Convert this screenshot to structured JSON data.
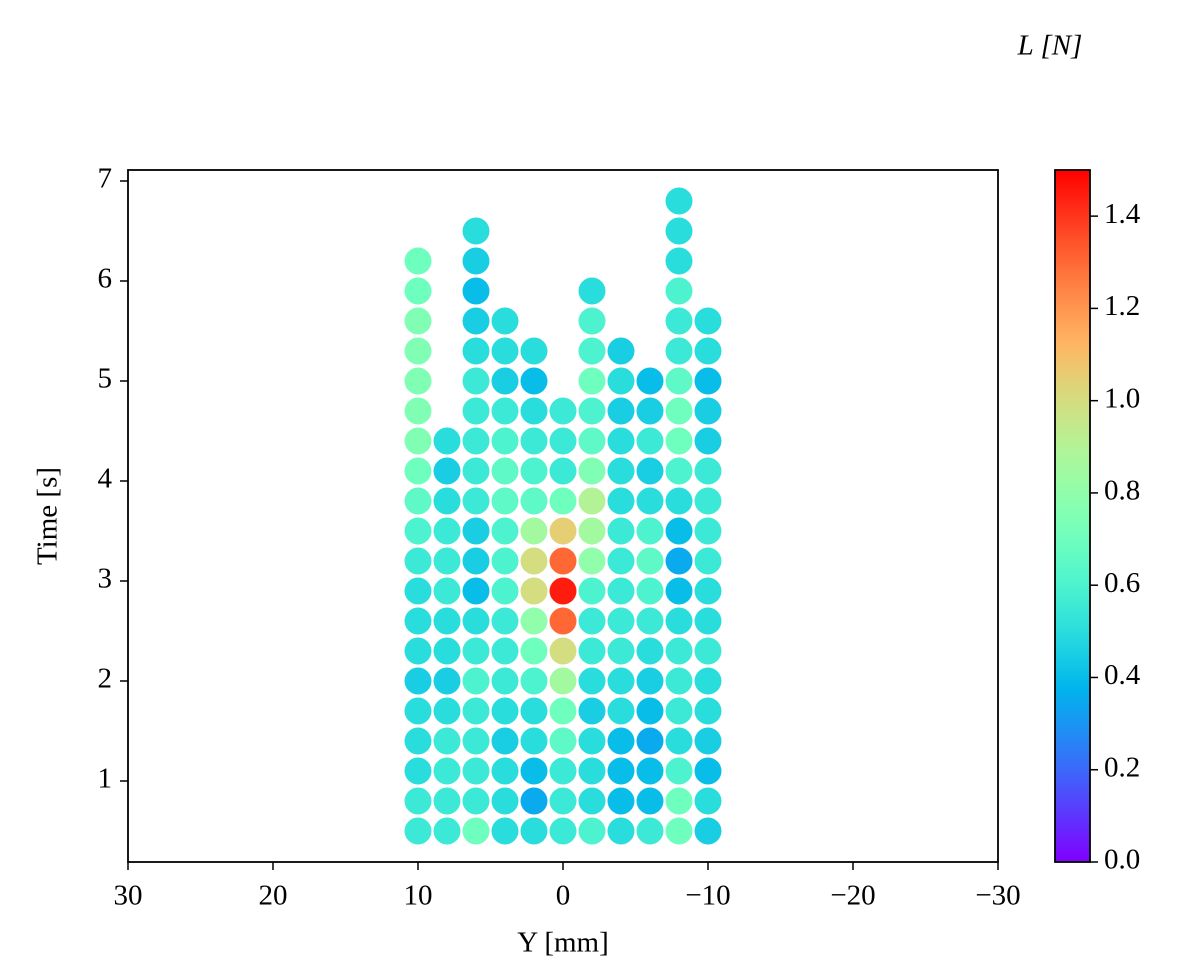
{
  "chart_data": {
    "type": "scatter",
    "colorbar_label": "L [N]",
    "xlabel": "Y [mm]",
    "ylabel": "Time [s]",
    "xlim": [
      30,
      -30
    ],
    "ylim": [
      0.19,
      7.11
    ],
    "xticks": [
      30,
      20,
      10,
      0,
      {
        "value": -10,
        "label": "−10"
      },
      {
        "value": -20,
        "label": "−20"
      },
      {
        "value": -30,
        "label": "−30"
      }
    ],
    "yticks": [
      1,
      2,
      3,
      4,
      5,
      6,
      7
    ],
    "clim": [
      0,
      1.5
    ],
    "cticks": [
      {
        "value": 0,
        "label": "0.0"
      },
      0.2,
      0.4,
      0.6,
      0.8,
      {
        "value": 1,
        "label": "1.0"
      },
      1.2,
      1.4
    ],
    "colormap": "rainbow",
    "x": [
      10,
      10,
      10,
      10,
      10,
      10,
      10,
      10,
      10,
      10,
      10,
      10,
      10,
      10,
      10,
      10,
      10,
      10,
      10,
      10,
      8,
      8,
      8,
      8,
      8,
      8,
      8,
      8,
      8,
      8,
      8,
      8,
      8,
      8,
      6,
      6,
      6,
      6,
      6,
      6,
      6,
      6,
      6,
      6,
      6,
      6,
      6,
      6,
      6,
      6,
      6,
      6,
      6,
      6,
      6,
      4,
      4,
      4,
      4,
      4,
      4,
      4,
      4,
      4,
      4,
      4,
      4,
      4,
      4,
      4,
      4,
      4,
      4,
      2,
      2,
      2,
      2,
      2,
      2,
      2,
      2,
      2,
      2,
      2,
      2,
      2,
      2,
      2,
      2,
      2,
      0,
      0,
      0,
      0,
      0,
      0,
      0,
      0,
      0,
      0,
      0,
      0,
      0,
      0,
      0,
      -2,
      -2,
      -2,
      -2,
      -2,
      -2,
      -2,
      -2,
      -2,
      -2,
      -2,
      -2,
      -2,
      -2,
      -2,
      -2,
      -2,
      -2,
      -2,
      -4,
      -4,
      -4,
      -4,
      -4,
      -4,
      -4,
      -4,
      -4,
      -4,
      -4,
      -4,
      -4,
      -4,
      -4,
      -4,
      -4,
      -6,
      -6,
      -6,
      -6,
      -6,
      -6,
      -6,
      -6,
      -6,
      -6,
      -6,
      -6,
      -6,
      -6,
      -6,
      -6,
      -8,
      -8,
      -8,
      -8,
      -8,
      -8,
      -8,
      -8,
      -8,
      -8,
      -8,
      -8,
      -8,
      -8,
      -8,
      -8,
      -8,
      -8,
      -8,
      -8,
      -8,
      -8,
      -10,
      -10,
      -10,
      -10,
      -10,
      -10,
      -10,
      -10,
      -10,
      -10,
      -10,
      -10,
      -10,
      -10,
      -10,
      -10,
      -10,
      -10
    ],
    "y": [
      0.5,
      0.8,
      1.1,
      1.4,
      1.7,
      2,
      2.3,
      2.6,
      2.9,
      3.2,
      3.5,
      3.8,
      4.1,
      4.4,
      4.7,
      5,
      5.3,
      5.6,
      5.9,
      6.2,
      0.5,
      0.8,
      1.1,
      1.4,
      1.7,
      2,
      2.3,
      2.6,
      2.9,
      3.2,
      3.5,
      3.8,
      4.1,
      4.4,
      0.5,
      0.8,
      1.1,
      1.4,
      1.7,
      2,
      2.3,
      2.6,
      2.9,
      3.2,
      3.5,
      3.8,
      4.1,
      4.4,
      4.7,
      5,
      5.3,
      5.6,
      5.9,
      6.2,
      6.5,
      0.5,
      0.8,
      1.1,
      1.4,
      1.7,
      2,
      2.3,
      2.6,
      2.9,
      3.2,
      3.5,
      3.8,
      4.1,
      4.4,
      4.7,
      5,
      5.3,
      5.6,
      0.5,
      0.8,
      1.1,
      1.4,
      1.7,
      2,
      2.3,
      2.6,
      2.9,
      3.2,
      3.5,
      3.8,
      4.1,
      4.4,
      4.7,
      5,
      5.3,
      0.5,
      0.8,
      1.1,
      1.4,
      1.7,
      2,
      2.3,
      2.6,
      2.9,
      3.2,
      3.5,
      3.8,
      4.1,
      4.4,
      4.7,
      0.5,
      0.8,
      1.1,
      1.4,
      1.7,
      2,
      2.3,
      2.6,
      2.9,
      3.2,
      3.5,
      3.8,
      4.1,
      4.4,
      4.7,
      5,
      5.3,
      5.6,
      5.9,
      0.5,
      0.8,
      1.1,
      1.4,
      1.7,
      2,
      2.3,
      2.6,
      2.9,
      3.2,
      3.5,
      3.8,
      4.1,
      4.4,
      4.7,
      5,
      5.3,
      0.5,
      0.8,
      1.1,
      1.4,
      1.7,
      2,
      2.3,
      2.6,
      2.9,
      3.2,
      3.5,
      3.8,
      4.1,
      4.4,
      4.7,
      5,
      0.5,
      0.8,
      1.1,
      1.4,
      1.7,
      2,
      2.3,
      2.6,
      2.9,
      3.2,
      3.5,
      3.8,
      4.1,
      4.4,
      4.7,
      5,
      5.3,
      5.6,
      5.9,
      6.2,
      6.5,
      6.8,
      0.5,
      0.8,
      1.1,
      1.4,
      1.7,
      2,
      2.3,
      2.6,
      2.9,
      3.2,
      3.5,
      3.8,
      4.1,
      4.4,
      4.7,
      5,
      5.3,
      5.6
    ],
    "values": [
      0.55,
      0.55,
      0.5,
      0.5,
      0.5,
      0.45,
      0.5,
      0.5,
      0.5,
      0.55,
      0.6,
      0.65,
      0.7,
      0.75,
      0.75,
      0.75,
      0.75,
      0.75,
      0.7,
      0.7,
      0.55,
      0.55,
      0.55,
      0.55,
      0.5,
      0.45,
      0.5,
      0.5,
      0.55,
      0.55,
      0.55,
      0.5,
      0.45,
      0.5,
      0.7,
      0.55,
      0.55,
      0.55,
      0.55,
      0.6,
      0.55,
      0.5,
      0.4,
      0.45,
      0.45,
      0.55,
      0.55,
      0.55,
      0.55,
      0.55,
      0.5,
      0.45,
      0.4,
      0.45,
      0.5,
      0.5,
      0.5,
      0.5,
      0.45,
      0.5,
      0.55,
      0.55,
      0.55,
      0.6,
      0.6,
      0.6,
      0.65,
      0.65,
      0.6,
      0.55,
      0.45,
      0.5,
      0.5,
      0.5,
      0.35,
      0.4,
      0.5,
      0.5,
      0.6,
      0.7,
      0.8,
      1.0,
      1.0,
      0.85,
      0.65,
      0.6,
      0.55,
      0.5,
      0.4,
      0.5,
      0.55,
      0.55,
      0.55,
      0.65,
      0.7,
      0.85,
      1.0,
      1.3,
      1.45,
      1.3,
      1.05,
      0.7,
      0.55,
      0.55,
      0.55,
      0.6,
      0.5,
      0.5,
      0.5,
      0.45,
      0.5,
      0.55,
      0.55,
      0.6,
      0.8,
      0.85,
      0.9,
      0.75,
      0.65,
      0.6,
      0.7,
      0.6,
      0.6,
      0.5,
      0.5,
      0.4,
      0.4,
      0.4,
      0.5,
      0.5,
      0.55,
      0.55,
      0.55,
      0.55,
      0.55,
      0.5,
      0.5,
      0.5,
      0.45,
      0.5,
      0.45,
      0.55,
      0.4,
      0.4,
      0.35,
      0.4,
      0.45,
      0.5,
      0.55,
      0.6,
      0.65,
      0.6,
      0.5,
      0.45,
      0.55,
      0.45,
      0.4,
      0.7,
      0.7,
      0.6,
      0.5,
      0.55,
      0.55,
      0.55,
      0.5,
      0.4,
      0.35,
      0.4,
      0.5,
      0.6,
      0.7,
      0.7,
      0.65,
      0.55,
      0.55,
      0.6,
      0.5,
      0.5,
      0.5,
      0.45,
      0.5,
      0.4,
      0.45,
      0.5,
      0.5,
      0.55,
      0.5,
      0.5,
      0.55,
      0.55,
      0.55,
      0.55,
      0.45,
      0.45,
      0.4,
      0.5,
      0.5
    ]
  }
}
